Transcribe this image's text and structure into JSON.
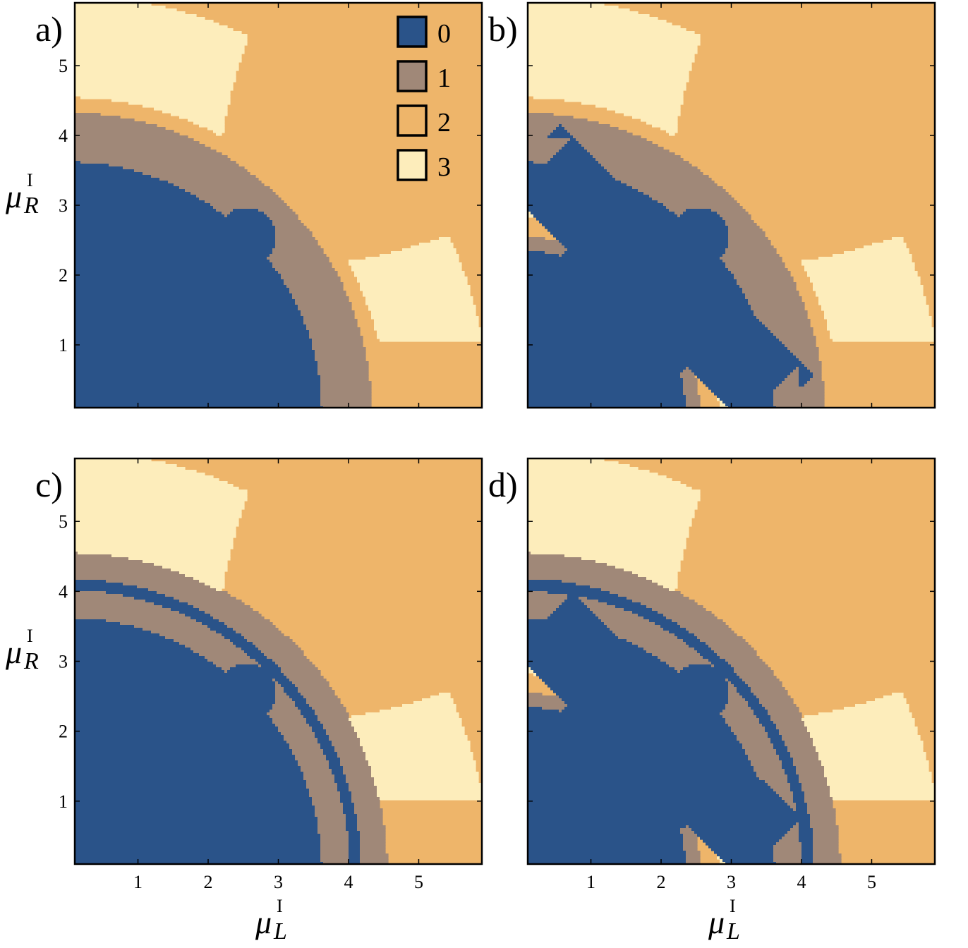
{
  "chart_data": {
    "type": "heatmap",
    "panels": [
      {
        "label": "a)",
        "variant": "a"
      },
      {
        "label": "b)",
        "variant": "b"
      },
      {
        "label": "c)",
        "variant": "c"
      },
      {
        "label": "d)",
        "variant": "d"
      }
    ],
    "xlabel": "μ",
    "xlabel_sup": "I",
    "xlabel_sub": "L",
    "ylabel": "μ",
    "ylabel_sup": "I",
    "ylabel_sub": "R",
    "xlim": [
      0.1,
      5.9
    ],
    "ylim": [
      0.1,
      5.9
    ],
    "ticks": [
      "1",
      "2",
      "3",
      "4",
      "5"
    ],
    "legend": [
      {
        "label": "0",
        "color": "#2a5389"
      },
      {
        "label": "1",
        "color": "#a08878"
      },
      {
        "label": "2",
        "color": "#eeb56a"
      },
      {
        "label": "3",
        "color": "#fdedbb"
      }
    ],
    "grid": false,
    "legend_placement": "top-right of panel a"
  }
}
